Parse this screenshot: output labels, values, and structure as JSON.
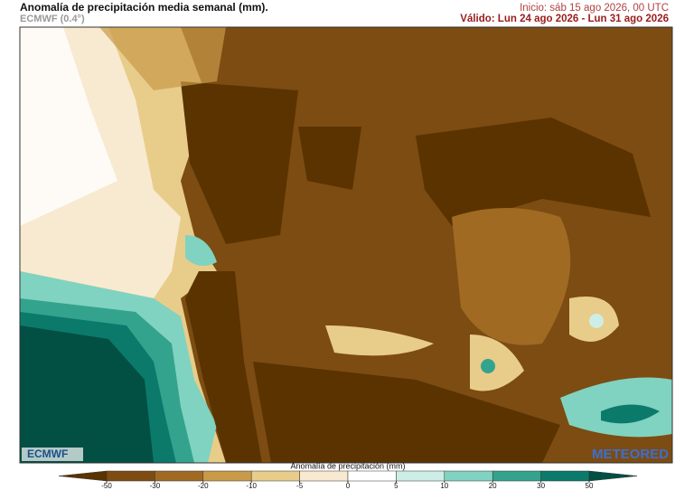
{
  "header": {
    "title": "Anomalía de precipitación media semanal (mm).",
    "model": "ECMWF (0.4°)",
    "init": "Inicio:  sáb 15 ago 2026, 00 UTC",
    "valid": "Válido: Lun 24 ago 2026 - Lun 31 ago 2026"
  },
  "map": {
    "logo_left": "ECMWF",
    "logo_right": "METEORED"
  },
  "legend": {
    "label": "Anomalía de precipitación (mm)",
    "ticks": [
      -50,
      -30,
      -20,
      -10,
      -5,
      0,
      5,
      10,
      20,
      30,
      50
    ],
    "colors": [
      "#5a3300",
      "#7c4c12",
      "#a06a22",
      "#c99a48",
      "#e8cc8a",
      "#f7ead0",
      "#ffffff",
      "#cdeee6",
      "#80d3c0",
      "#34a38e",
      "#0b7a6b",
      "#024f44"
    ]
  }
}
